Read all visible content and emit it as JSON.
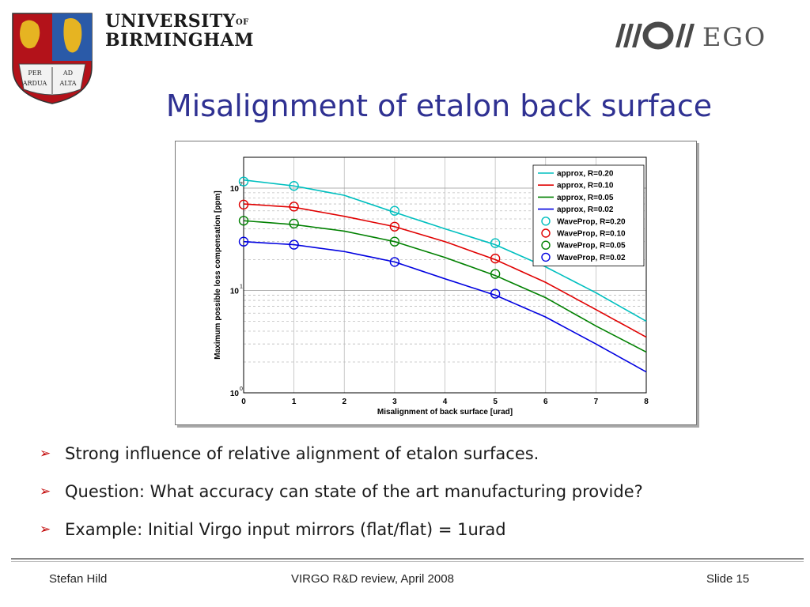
{
  "header": {
    "university_line1": "UNIVERSITY",
    "university_of": "OF",
    "university_line2": "BIRMINGHAM",
    "crest_motto_1": "PER",
    "crest_motto_2": "AD",
    "crest_motto_3": "ARDUA",
    "crest_motto_4": "ALTA",
    "ego_logo_text": "EGO",
    "title": "Misalignment of etalon back surface"
  },
  "bullets": [
    {
      "text": "Strong influence of relative alignment of etalon surfaces."
    },
    {
      "text": "Question: What accuracy can state of the art manufacturing provide?"
    },
    {
      "text": "Example: Initial Virgo input mirrors (flat/flat) = 1urad"
    }
  ],
  "footer": {
    "left": "Stefan Hild",
    "center": "VIRGO R&D review, April 2008",
    "right": "Slide 15"
  },
  "colors": {
    "title": "#2f3192",
    "bullet_arrow": "#c00000",
    "cyan": "#00bfbf",
    "red": "#e00000",
    "green": "#008000",
    "blue": "#0000e0"
  },
  "chart_data": {
    "type": "line",
    "xlabel": "Misalignment of back surface [urad]",
    "ylabel": "Maximum possible loss compensation [ppm]",
    "xlim": [
      0,
      8
    ],
    "ylim": [
      1,
      200
    ],
    "yscale": "log",
    "x_ticks": [
      "0",
      "1",
      "2",
      "3",
      "4",
      "5",
      "6",
      "7",
      "8"
    ],
    "y_ticks": [
      {
        "base": "10",
        "exp": "0",
        "value": 1
      },
      {
        "base": "10",
        "exp": "1",
        "value": 10
      },
      {
        "base": "10",
        "exp": "2",
        "value": 100
      }
    ],
    "grid": true,
    "legend_position": "top-right",
    "series": [
      {
        "name": "approx, R=0.20",
        "kind": "line",
        "color": "#00bfbf",
        "x": [
          0,
          1,
          2,
          3,
          4,
          5,
          6,
          7,
          8
        ],
        "y": [
          120,
          105,
          85,
          58,
          40,
          28,
          17,
          9.5,
          5
        ]
      },
      {
        "name": "approx, R=0.10",
        "kind": "line",
        "color": "#e00000",
        "x": [
          0,
          1,
          2,
          3,
          4,
          5,
          6,
          7,
          8
        ],
        "y": [
          70,
          65,
          53,
          42,
          30,
          20,
          12,
          6.5,
          3.5
        ]
      },
      {
        "name": "approx, R=0.05",
        "kind": "line",
        "color": "#008000",
        "x": [
          0,
          1,
          2,
          3,
          4,
          5,
          6,
          7,
          8
        ],
        "y": [
          48,
          44,
          38,
          30,
          21,
          14,
          8.5,
          4.5,
          2.5
        ]
      },
      {
        "name": "approx, R=0.02",
        "kind": "line",
        "color": "#0000e0",
        "x": [
          0,
          1,
          2,
          3,
          4,
          5,
          6,
          7,
          8
        ],
        "y": [
          30,
          28,
          24,
          19,
          13,
          9,
          5.5,
          3,
          1.6
        ]
      },
      {
        "name": "WaveProp, R=0.20",
        "kind": "marker",
        "color": "#00bfbf",
        "x": [
          0,
          1,
          3,
          5
        ],
        "y": [
          116,
          105,
          60,
          29
        ]
      },
      {
        "name": "WaveProp, R=0.10",
        "kind": "marker",
        "color": "#e00000",
        "x": [
          0,
          1,
          3,
          5
        ],
        "y": [
          69,
          66,
          42,
          20.5
        ]
      },
      {
        "name": "WaveProp, R=0.05",
        "kind": "marker",
        "color": "#008000",
        "x": [
          0,
          1,
          3,
          5
        ],
        "y": [
          48,
          45,
          30,
          14.5
        ]
      },
      {
        "name": "WaveProp, R=0.02",
        "kind": "marker",
        "color": "#0000e0",
        "x": [
          0,
          1,
          3,
          5
        ],
        "y": [
          30,
          28,
          19,
          9.3
        ]
      }
    ]
  }
}
